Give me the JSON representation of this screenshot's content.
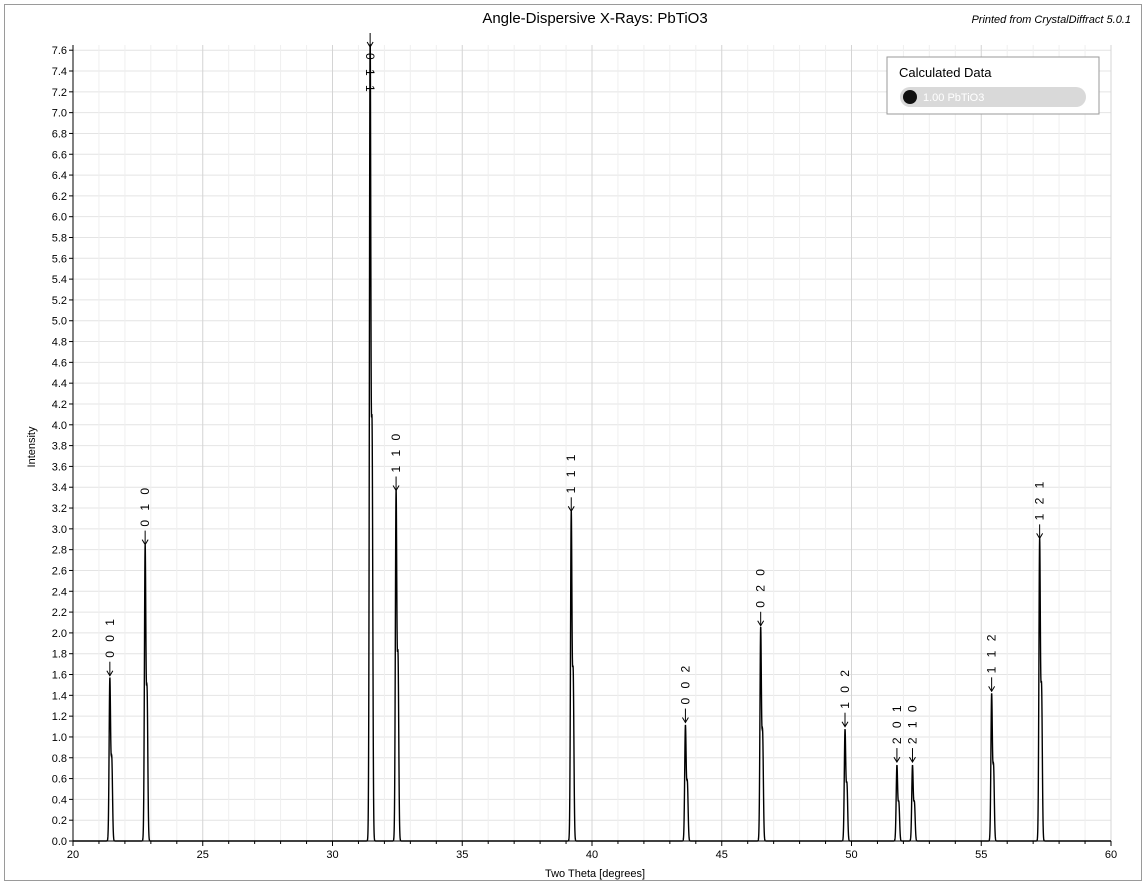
{
  "header": {
    "printed_from": "Printed from CrystalDiffract 5.0.1"
  },
  "legend": {
    "title": "Calculated Data",
    "entry": "1.00 PbTiO3",
    "pill_color": "#d9d9d9",
    "dot_color": "#111111"
  },
  "colors": {
    "line": "#000000",
    "grid": "#e4e4e4",
    "axis": "#000000",
    "background": "#ffffff"
  },
  "chart_data": {
    "type": "line",
    "title": "Angle-Dispersive X-Rays: PbTiO3",
    "xlabel": "Two Theta [degrees]",
    "ylabel": "Intensity",
    "xlim": [
      20,
      60
    ],
    "ylim": [
      0,
      7.65
    ],
    "x_ticks": [
      20,
      25,
      30,
      35,
      40,
      45,
      50,
      55,
      60
    ],
    "y_ticks": [
      0.0,
      0.2,
      0.4,
      0.6,
      0.8,
      1.0,
      1.2,
      1.4,
      1.6,
      1.8,
      2.0,
      2.2,
      2.4,
      2.6,
      2.8,
      3.0,
      3.2,
      3.4,
      3.6,
      3.8,
      4.0,
      4.2,
      4.4,
      4.6,
      4.8,
      5.0,
      5.2,
      5.4,
      5.6,
      5.8,
      6.0,
      6.2,
      6.4,
      6.6,
      6.8,
      7.0,
      7.2,
      7.4,
      7.6
    ],
    "grid": true,
    "legend_position": "top-right",
    "series": [
      {
        "name": "1.00 PbTiO3",
        "peaks": [
          {
            "hkl": "0 0 1",
            "two_theta": 21.42,
            "intensity": 1.55,
            "shoulder": 0.77
          },
          {
            "hkl": "0 1 0",
            "two_theta": 22.78,
            "intensity": 2.81,
            "shoulder": 1.4
          },
          {
            "hkl": "0 1 1",
            "two_theta": 31.45,
            "intensity": 7.65,
            "shoulder": 3.82
          },
          {
            "hkl": "1 1 0",
            "two_theta": 32.45,
            "intensity": 3.33,
            "shoulder": 1.72
          },
          {
            "hkl": "1 1 1",
            "two_theta": 39.2,
            "intensity": 3.13,
            "shoulder": 1.57
          },
          {
            "hkl": "0 0 2",
            "two_theta": 43.6,
            "intensity": 1.1,
            "shoulder": 0.55
          },
          {
            "hkl": "0 2 0",
            "two_theta": 46.5,
            "intensity": 2.03,
            "shoulder": 1.01
          },
          {
            "hkl": "1 0 2",
            "two_theta": 49.75,
            "intensity": 1.06,
            "shoulder": 0.53
          },
          {
            "hkl": "2 0 1",
            "two_theta": 51.75,
            "intensity": 0.72,
            "shoulder": 0.36
          },
          {
            "hkl": "2 1 0",
            "two_theta": 52.35,
            "intensity": 0.72,
            "shoulder": 0.36
          },
          {
            "hkl": "1 1 2",
            "two_theta": 55.4,
            "intensity": 1.4,
            "shoulder": 0.7
          },
          {
            "hkl": "1 2 1",
            "two_theta": 57.25,
            "intensity": 2.87,
            "shoulder": 1.43
          }
        ]
      }
    ]
  }
}
